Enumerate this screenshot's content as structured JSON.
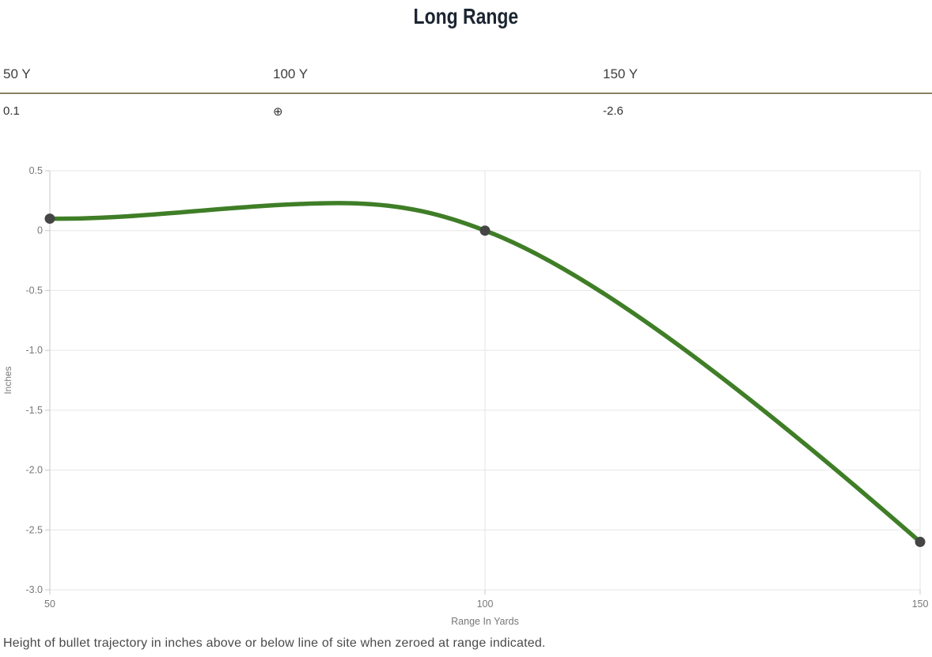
{
  "title": "Long Range",
  "range_table": {
    "columns": [
      {
        "label": "50 Y",
        "value": "0.1"
      },
      {
        "label": "100 Y",
        "value": "⊕"
      },
      {
        "label": "150 Y",
        "value": "-2.6"
      }
    ]
  },
  "chart_data": {
    "type": "line",
    "title": "",
    "xlabel": "Range In Yards",
    "ylabel": "Inches",
    "series": [
      {
        "name": "bullet-trajectory",
        "x": [
          50,
          100,
          150
        ],
        "values": [
          0.1,
          0.0,
          -2.6
        ]
      }
    ],
    "curve_peak": {
      "x": 83,
      "y": 0.23
    },
    "xticks": [
      "50",
      "100",
      "150"
    ],
    "yticks": [
      "0.5",
      "0",
      "-0.5",
      "-1.0",
      "-1.5",
      "-2.0",
      "-2.5",
      "-3.0"
    ],
    "xlim": [
      50,
      150
    ],
    "ylim": [
      -3.0,
      0.5
    ],
    "grid": true,
    "legend": false,
    "colors": {
      "line": "#3f7e27",
      "marker": "#454545",
      "grid": "#e6e6e6",
      "axis": "#c9c9c9",
      "tick_label": "#787878"
    }
  },
  "caption": "Height of bullet trajectory in inches above or below line of site when zeroed at range indicated.",
  "theme": {
    "divider_color": "#85825f",
    "title_color": "#1b2531"
  }
}
